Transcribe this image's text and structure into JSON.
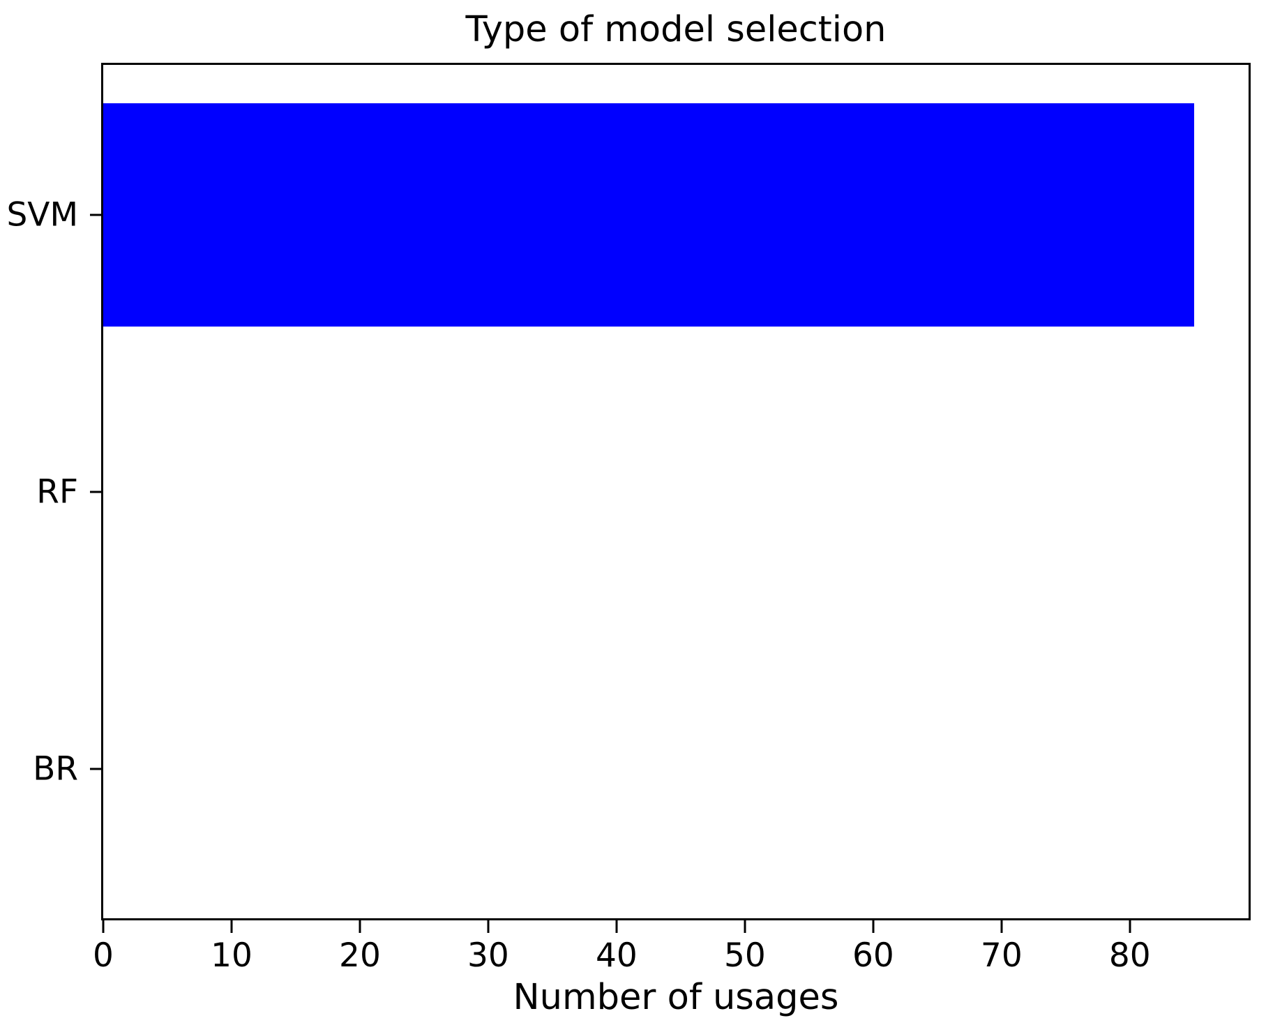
{
  "chart_data": {
    "type": "bar",
    "orientation": "horizontal",
    "title": "Type of model selection",
    "xlabel": "Number of usages",
    "categories": [
      "SVM",
      "RF",
      "BR"
    ],
    "values": [
      85,
      0,
      0
    ],
    "xticks": [
      0,
      10,
      20,
      30,
      40,
      50,
      60,
      70,
      80
    ],
    "xlim": [
      0,
      89.25
    ],
    "bar_color": "#0000ff",
    "axis_color": "#000000",
    "text_color": "#000000",
    "background_color": "#ffffff",
    "grid": false
  }
}
